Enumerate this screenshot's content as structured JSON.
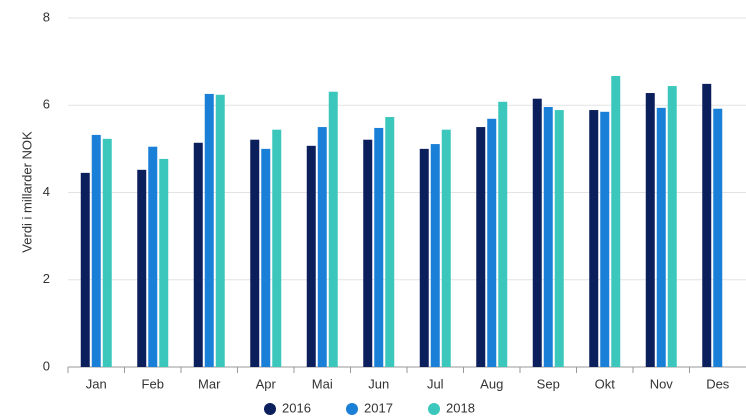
{
  "chart_data": {
    "type": "bar",
    "y_label": "Verdi i millarder NOK",
    "categories": [
      "Jan",
      "Feb",
      "Mar",
      "Apr",
      "Mai",
      "Jun",
      "Jul",
      "Aug",
      "Sep",
      "Okt",
      "Nov",
      "Des"
    ],
    "series": [
      {
        "name": "2016",
        "color": "#0b1f5c",
        "values": [
          4.45,
          4.52,
          5.14,
          5.21,
          5.07,
          5.21,
          5.0,
          5.5,
          6.15,
          5.89,
          6.28,
          6.49
        ]
      },
      {
        "name": "2017",
        "color": "#1a7fd6",
        "values": [
          5.32,
          5.05,
          6.26,
          5.0,
          5.5,
          5.48,
          5.11,
          5.69,
          5.96,
          5.85,
          5.94,
          5.92
        ]
      },
      {
        "name": "2018",
        "color": "#3cc7bd",
        "values": [
          5.23,
          4.77,
          6.24,
          5.44,
          6.31,
          5.73,
          5.44,
          6.08,
          5.89,
          6.67,
          6.44,
          null
        ]
      }
    ],
    "ylim": [
      0,
      8
    ],
    "yticks": [
      0,
      2,
      4,
      6,
      8
    ],
    "grid": true
  }
}
